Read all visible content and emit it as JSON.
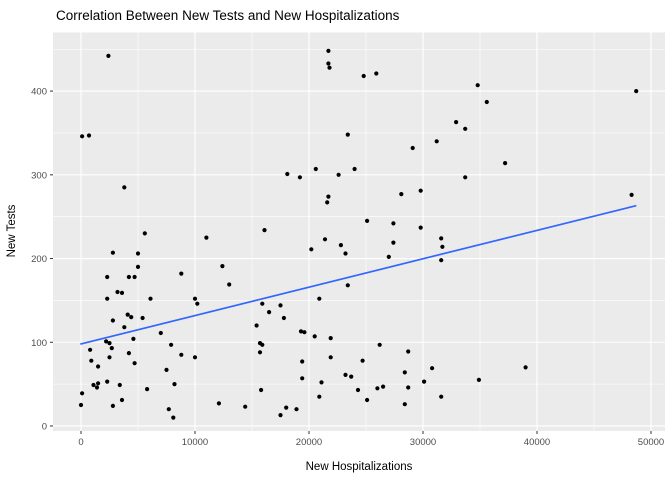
{
  "title": "Correlation Between New Tests and New Hospitalizations",
  "chart_data": {
    "type": "scatter",
    "title": "Correlation Between New Tests and New Hospitalizations",
    "xlabel": "New Hospitalizations",
    "ylabel": "New Tests",
    "x_major_ticks": [
      0,
      10000,
      20000,
      30000,
      40000,
      50000
    ],
    "x_minor_ticks": [
      5000,
      15000,
      25000,
      35000,
      45000
    ],
    "y_major_ticks": [
      0,
      100,
      200,
      300,
      400
    ],
    "y_minor_ticks": [
      50,
      150,
      250,
      350,
      450
    ],
    "xlim": [
      -2456,
      51228
    ],
    "ylim": [
      -6,
      470
    ],
    "grid": true,
    "legend": false,
    "colors": {
      "panel_bg": "#EBEBEB",
      "grid": "#FFFFFF",
      "point": "#000000",
      "trend": "#3366FF",
      "tick_label": "#4D4D4D",
      "tick_mark": "#333333"
    },
    "trend_line": {
      "x": [
        0,
        48650
      ],
      "y": [
        98,
        263
      ]
    },
    "points": [
      [
        2400,
        442
      ],
      [
        100,
        346
      ],
      [
        700,
        347
      ],
      [
        3800,
        285
      ],
      [
        5600,
        230
      ],
      [
        11000,
        225
      ],
      [
        21700,
        448
      ],
      [
        21700,
        433
      ],
      [
        21800,
        428
      ],
      [
        24800,
        418
      ],
      [
        25900,
        421
      ],
      [
        23400,
        348
      ],
      [
        31200,
        340
      ],
      [
        29100,
        332
      ],
      [
        18100,
        301
      ],
      [
        19200,
        297
      ],
      [
        20600,
        307
      ],
      [
        22600,
        300
      ],
      [
        24000,
        307
      ],
      [
        21700,
        274
      ],
      [
        21600,
        267
      ],
      [
        28100,
        277
      ],
      [
        29800,
        281
      ],
      [
        25100,
        245
      ],
      [
        27400,
        242
      ],
      [
        29800,
        237
      ],
      [
        16100,
        234
      ],
      [
        32900,
        363
      ],
      [
        34800,
        407
      ],
      [
        35600,
        387
      ],
      [
        33700,
        355
      ],
      [
        48700,
        400
      ],
      [
        37200,
        314
      ],
      [
        33700,
        297
      ],
      [
        48300,
        276
      ],
      [
        2800,
        207
      ],
      [
        5000,
        206
      ],
      [
        5000,
        190
      ],
      [
        12400,
        191
      ],
      [
        2300,
        178
      ],
      [
        4200,
        178
      ],
      [
        4700,
        178
      ],
      [
        8800,
        182
      ],
      [
        13000,
        169
      ],
      [
        2300,
        152
      ],
      [
        3200,
        160
      ],
      [
        3600,
        159
      ],
      [
        6100,
        152
      ],
      [
        10000,
        152
      ],
      [
        10200,
        146
      ],
      [
        2800,
        126
      ],
      [
        4100,
        133
      ],
      [
        4400,
        130
      ],
      [
        5400,
        129
      ],
      [
        3800,
        118
      ],
      [
        4600,
        104
      ],
      [
        2200,
        101
      ],
      [
        2500,
        99
      ],
      [
        2700,
        93
      ],
      [
        800,
        91
      ],
      [
        900,
        78
      ],
      [
        2500,
        82
      ],
      [
        1500,
        71
      ],
      [
        4200,
        87
      ],
      [
        4700,
        75
      ],
      [
        7000,
        111
      ],
      [
        7900,
        97
      ],
      [
        7500,
        67
      ],
      [
        8800,
        85
      ],
      [
        10000,
        82
      ],
      [
        1100,
        49
      ],
      [
        1500,
        51
      ],
      [
        1400,
        46
      ],
      [
        100,
        39
      ],
      [
        0,
        25
      ],
      [
        2300,
        53
      ],
      [
        2800,
        24
      ],
      [
        3400,
        49
      ],
      [
        3600,
        31
      ],
      [
        5800,
        44
      ],
      [
        7700,
        20
      ],
      [
        8100,
        10
      ],
      [
        8200,
        50
      ],
      [
        12100,
        27
      ],
      [
        14400,
        23
      ],
      [
        21400,
        223
      ],
      [
        20200,
        211
      ],
      [
        22800,
        216
      ],
      [
        23200,
        206
      ],
      [
        27000,
        202
      ],
      [
        27400,
        219
      ],
      [
        31600,
        224
      ],
      [
        31700,
        214
      ],
      [
        31600,
        198
      ],
      [
        23400,
        168
      ],
      [
        20900,
        152
      ],
      [
        15900,
        146
      ],
      [
        16500,
        136
      ],
      [
        17500,
        144
      ],
      [
        17800,
        129
      ],
      [
        15400,
        120
      ],
      [
        19300,
        113
      ],
      [
        19600,
        112
      ],
      [
        20500,
        107
      ],
      [
        21900,
        105
      ],
      [
        15700,
        99
      ],
      [
        15900,
        97
      ],
      [
        15700,
        88
      ],
      [
        26200,
        97
      ],
      [
        28700,
        89
      ],
      [
        19400,
        77
      ],
      [
        21900,
        82
      ],
      [
        24700,
        78
      ],
      [
        23200,
        61
      ],
      [
        23700,
        59
      ],
      [
        19400,
        57
      ],
      [
        21100,
        52
      ],
      [
        28400,
        64
      ],
      [
        30800,
        69
      ],
      [
        30100,
        53
      ],
      [
        28700,
        46
      ],
      [
        26500,
        47
      ],
      [
        26000,
        45
      ],
      [
        24300,
        43
      ],
      [
        25100,
        31
      ],
      [
        20900,
        35
      ],
      [
        15800,
        43
      ],
      [
        18000,
        22
      ],
      [
        18900,
        20
      ],
      [
        17500,
        13
      ],
      [
        28400,
        26
      ],
      [
        31600,
        35
      ],
      [
        39000,
        70
      ],
      [
        34900,
        55
      ]
    ]
  }
}
